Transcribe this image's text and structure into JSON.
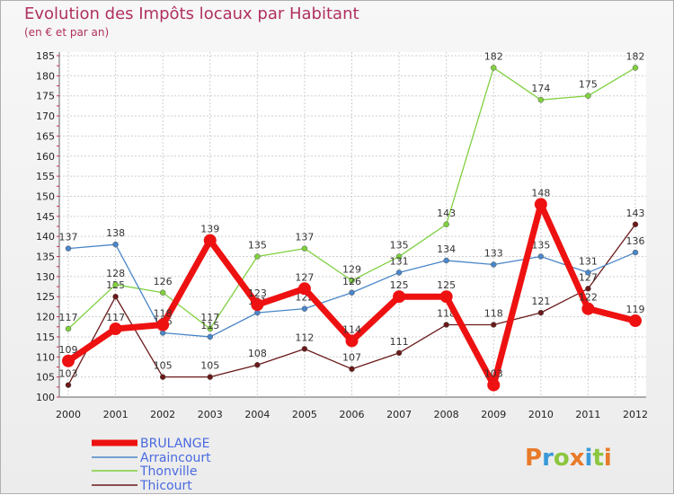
{
  "chart_data": {
    "type": "line",
    "title": "Evolution des Impôts locaux par Habitant",
    "subtitle": "(en € et par an)",
    "categories": [
      "2000",
      "2001",
      "2002",
      "2003",
      "2004",
      "2005",
      "2006",
      "2007",
      "2008",
      "2009",
      "2010",
      "2011",
      "2012"
    ],
    "ylim": [
      100,
      185
    ],
    "yticks": [
      100,
      105,
      110,
      115,
      120,
      125,
      130,
      135,
      140,
      145,
      150,
      155,
      160,
      165,
      170,
      175,
      180,
      185
    ],
    "grid": true,
    "legend_position": "bottom-left",
    "series": [
      {
        "name": "Thicourt",
        "color": "#6a1a1a",
        "values": [
          103,
          125,
          105,
          105,
          108,
          112,
          107,
          111,
          118,
          118,
          121,
          127,
          143
        ]
      },
      {
        "name": "Thonville",
        "color": "#80d040",
        "values": [
          117,
          128,
          126,
          117,
          135,
          137,
          129,
          135,
          143,
          182,
          174,
          175,
          182
        ]
      },
      {
        "name": "Arraincourt",
        "color": "#4a86c8",
        "values": [
          137,
          138,
          116,
          115,
          121,
          122,
          126,
          131,
          134,
          133,
          135,
          131,
          136
        ]
      },
      {
        "name": "BRULANGE",
        "color": "#ee1111",
        "values": [
          109,
          117,
          118,
          139,
          123,
          127,
          114,
          125,
          125,
          103,
          148,
          122,
          119
        ]
      }
    ],
    "legend": [
      "BRULANGE",
      "Arraincourt",
      "Thonville",
      "Thicourt"
    ]
  },
  "brand": {
    "letters": [
      "P",
      "r",
      "o",
      "x",
      "i",
      "t",
      "i"
    ],
    "colors": [
      "#e87a2a",
      "#3a9ad9",
      "#8cc63f",
      "#e87a2a",
      "#3a9ad9",
      "#8cc63f",
      "#e87a2a"
    ]
  }
}
